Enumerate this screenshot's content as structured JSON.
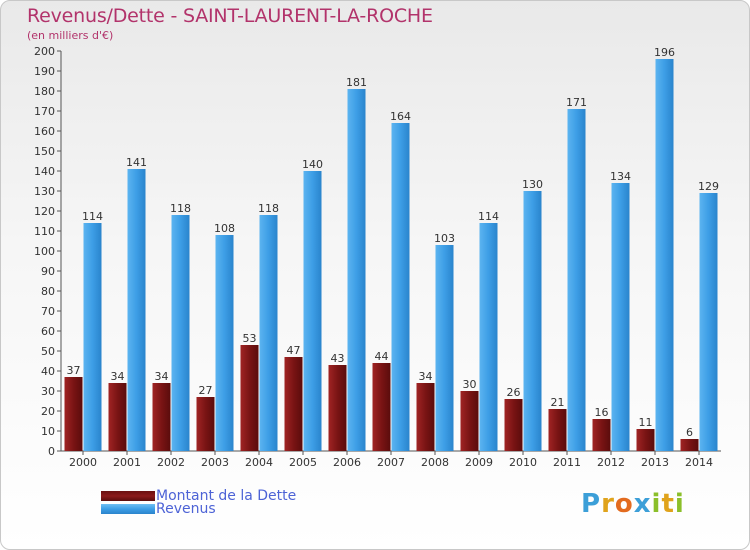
{
  "chart_data": {
    "type": "bar",
    "title": "Revenus/Dette - SAINT-LAURENT-LA-ROCHE",
    "subtitle": "(en milliers d'€)",
    "categories": [
      "2000",
      "2001",
      "2002",
      "2003",
      "2004",
      "2005",
      "2006",
      "2007",
      "2008",
      "2009",
      "2010",
      "2011",
      "2012",
      "2013",
      "2014"
    ],
    "series": [
      {
        "name": "Montant de la Dette",
        "color": "#8b1a1a",
        "values": [
          37,
          34,
          34,
          27,
          53,
          47,
          43,
          44,
          34,
          30,
          26,
          21,
          16,
          11,
          6
        ]
      },
      {
        "name": "Revenus",
        "color": "#3d9ee6",
        "values": [
          114,
          141,
          118,
          108,
          118,
          140,
          181,
          164,
          103,
          114,
          130,
          171,
          134,
          196,
          129
        ]
      }
    ],
    "ylim": [
      0,
      200
    ],
    "ytick_step": 10,
    "grid": false,
    "legend_position": "bottom-left"
  },
  "logo": {
    "letters": [
      "P",
      "r",
      "o",
      "x",
      "i",
      "t",
      "i"
    ],
    "colors": [
      "#3c9fd8",
      "#e0a31c",
      "#e36b1f",
      "#3c9fd8",
      "#8bbf2a",
      "#e0a31c",
      "#8bbf2a"
    ]
  }
}
